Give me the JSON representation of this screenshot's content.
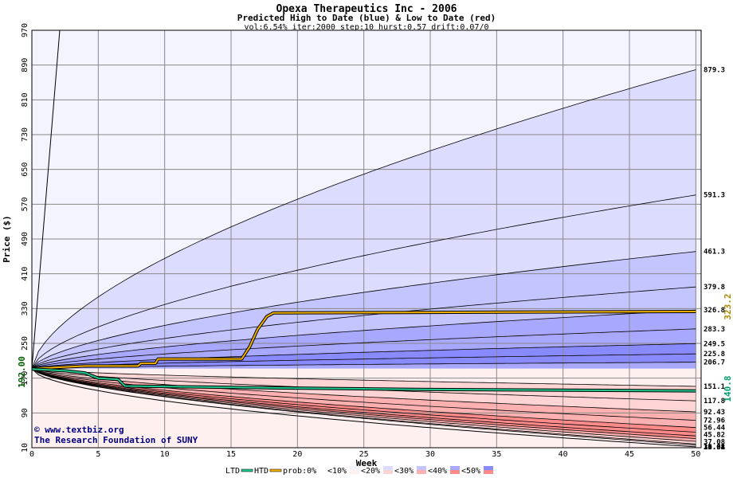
{
  "chart_data": {
    "type": "area",
    "title": "Opexa Therapeutics Inc - 2006",
    "subtitle": "Predicted High to Date (blue) &  Low to Date (red)",
    "params": "vol:6.54% iter:2000 step:10 hurst:0.57 drift:0.07/0",
    "xlabel": "Week",
    "ylabel": "Price ($)",
    "xlim": [
      0,
      50.4
    ],
    "ylim": [
      10,
      970
    ],
    "x_ticks": [
      "0",
      "5",
      "10",
      "15",
      "20",
      "25",
      "30",
      "35",
      "40",
      "45",
      "50"
    ],
    "y_ticks": [
      "10",
      "90",
      "170",
      "250",
      "330",
      "410",
      "490",
      "570",
      "650",
      "730",
      "810",
      "890",
      "970"
    ],
    "grid": true,
    "start_price": 192,
    "start_label": "192.00",
    "htd_final": 323.2,
    "htd_label": "323.2",
    "ltd_final": 140.8,
    "ltd_label": "140.8",
    "high_quantiles": [
      {
        "label": "879.3",
        "end": 879.3,
        "hidden": false
      },
      {
        "label": "591.3",
        "end": 591.3,
        "hidden": false
      },
      {
        "label": "461.3",
        "end": 461.3,
        "hidden": false
      },
      {
        "label": "379.8",
        "end": 379.8,
        "hidden": false
      },
      {
        "label": "326.8",
        "end": 326.8,
        "hidden": false
      },
      {
        "label": "283.3",
        "end": 283.3,
        "hidden": false
      },
      {
        "label": "249.5",
        "end": 249.5,
        "hidden": false
      },
      {
        "label": "225.8",
        "end": 225.8,
        "hidden": false
      },
      {
        "label": "206.7",
        "end": 206.7,
        "hidden": false
      }
    ],
    "low_quantiles": [
      {
        "label": "151.1",
        "end": 151.1
      },
      {
        "label": "117.8",
        "end": 117.8
      },
      {
        "label": "92.43",
        "end": 92.43
      },
      {
        "label": "72.96",
        "end": 72.96
      },
      {
        "label": "56.44",
        "end": 56.44
      },
      {
        "label": "45.82",
        "end": 45.82
      },
      {
        "label": "37.08",
        "end": 37.08
      },
      {
        "label": "30.92",
        "end": 30.92
      },
      {
        "label": "24.61",
        "end": 24.61
      },
      {
        "label": "18.64",
        "end": 18.64
      },
      {
        "label": "15.88",
        "end": 15.88
      }
    ],
    "colors": {
      "band_high_0": "#f4f4ff",
      "band_high_1": "#dcdcff",
      "band_high_2": "#c4c4ff",
      "band_high_3": "#a8a8ff",
      "band_high_4": "#8a8aff",
      "band_low_0": "#fff0f0",
      "band_low_1": "#ffd4d4",
      "band_low_2": "#ffb0b0",
      "band_low_3": "#ff8a8a",
      "htd_line": "#f0b000",
      "ltd_line": "#20c890",
      "htd_label": "#b08800",
      "ltd_label": "#00a070",
      "start_label": "#006000",
      "credit": "#000080"
    },
    "legend": {
      "ltd": "LTD",
      "htd": "HTD",
      "prob": "prob:0%",
      "items": [
        "<10%",
        "<20%",
        "<30%",
        "<40%",
        "<50%"
      ]
    }
  },
  "credits": {
    "site": "© www.textbiz.org",
    "org": "The Research Foundation of SUNY"
  }
}
